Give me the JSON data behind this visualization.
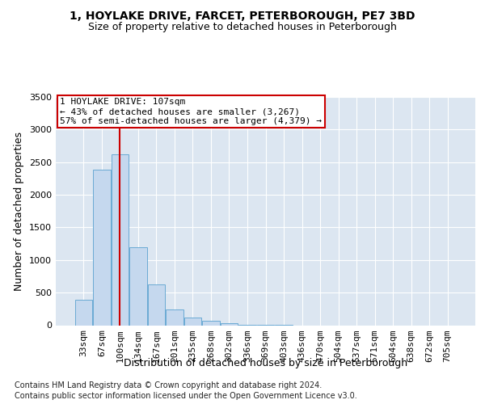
{
  "title1": "1, HOYLAKE DRIVE, FARCET, PETERBOROUGH, PE7 3BD",
  "title2": "Size of property relative to detached houses in Peterborough",
  "xlabel": "Distribution of detached houses by size in Peterborough",
  "ylabel": "Number of detached properties",
  "categories": [
    "33sqm",
    "67sqm",
    "100sqm",
    "134sqm",
    "167sqm",
    "201sqm",
    "235sqm",
    "268sqm",
    "302sqm",
    "336sqm",
    "369sqm",
    "403sqm",
    "436sqm",
    "470sqm",
    "504sqm",
    "537sqm",
    "571sqm",
    "604sqm",
    "638sqm",
    "672sqm",
    "705sqm"
  ],
  "values": [
    390,
    2390,
    2620,
    1200,
    630,
    240,
    120,
    70,
    30,
    10,
    5,
    2,
    0,
    0,
    0,
    0,
    0,
    0,
    0,
    0,
    0
  ],
  "bar_color": "#c5d8ee",
  "bar_edgecolor": "#6aaad4",
  "vline_x": 1.97,
  "vline_color": "#cc0000",
  "annotation_text": "1 HOYLAKE DRIVE: 107sqm\n← 43% of detached houses are smaller (3,267)\n57% of semi-detached houses are larger (4,379) →",
  "annotation_box_color": "#ffffff",
  "annotation_box_edgecolor": "#cc0000",
  "footnote1": "Contains HM Land Registry data © Crown copyright and database right 2024.",
  "footnote2": "Contains public sector information licensed under the Open Government Licence v3.0.",
  "plot_bg_color": "#dce6f1",
  "grid_color": "#ffffff",
  "ylim": [
    0,
    3500
  ],
  "yticks": [
    0,
    500,
    1000,
    1500,
    2000,
    2500,
    3000,
    3500
  ],
  "title1_fontsize": 10,
  "title2_fontsize": 9,
  "xlabel_fontsize": 9,
  "ylabel_fontsize": 9,
  "tick_fontsize": 8,
  "annot_fontsize": 8,
  "footnote_fontsize": 7
}
